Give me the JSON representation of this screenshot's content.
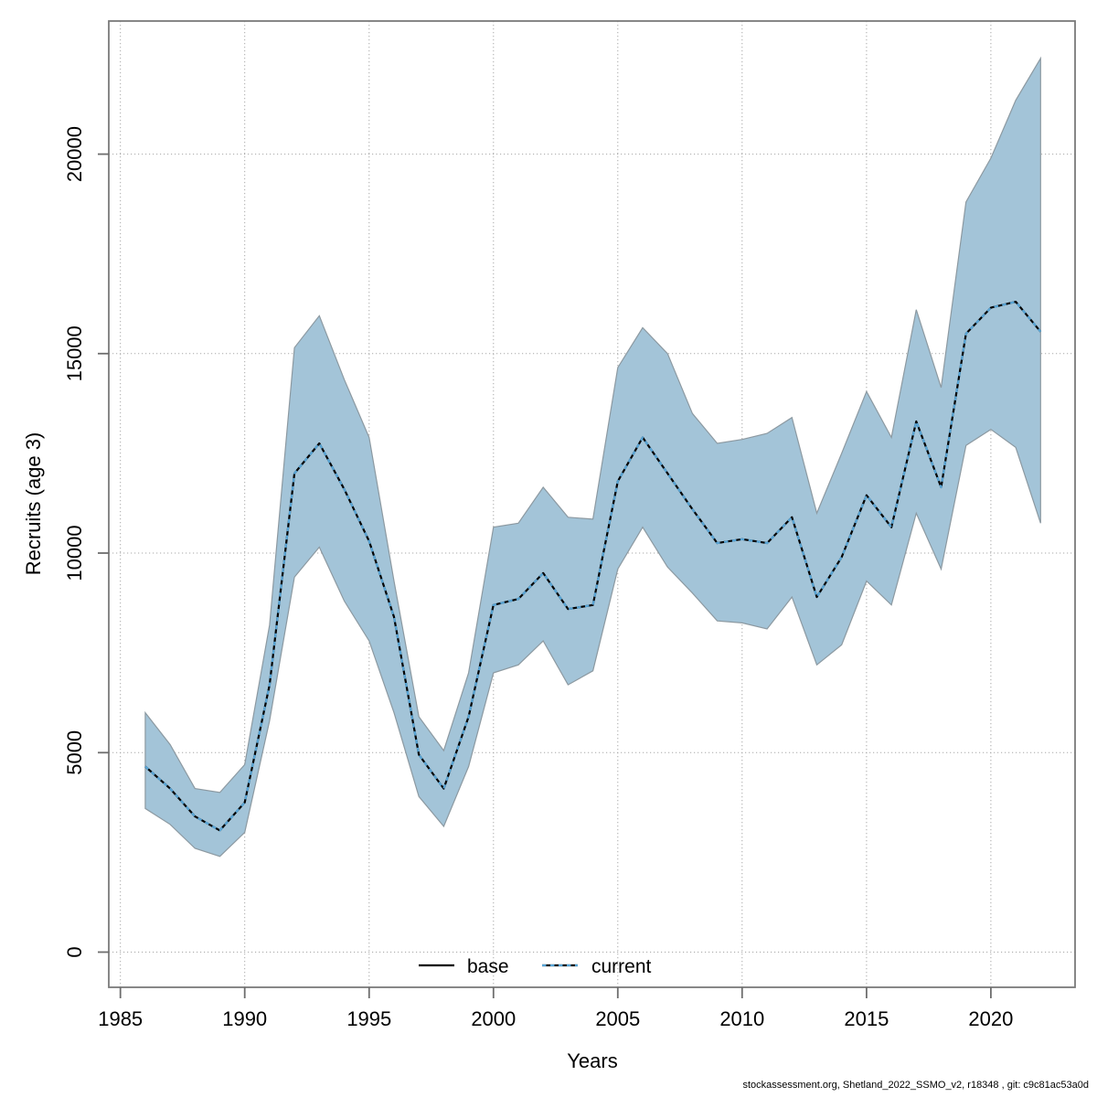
{
  "footer": "stockassessment.org, Shetland_2022_SSMO_v2, r18348 , git: c9c81ac53a0d",
  "chart_data": {
    "type": "line",
    "title": "",
    "xlabel": "Years",
    "ylabel": "Recruits (age 3)",
    "x_ticks": [
      1985,
      1990,
      1995,
      2000,
      2005,
      2010,
      2015,
      2020
    ],
    "y_ticks": [
      0,
      5000,
      10000,
      15000,
      20000
    ],
    "xlim": [
      1984.5,
      2023.4
    ],
    "ylim": [
      0,
      23350
    ],
    "grid": true,
    "legend_position": "bottom-center-inside",
    "legend": [
      "base",
      "current"
    ],
    "band_fill_color": "#a3c4d8",
    "current_line_color": "#58a5d6",
    "base_line_color": "#000000",
    "note": "base line coincides with the current median line (hidden beneath the dotted overlay); shaded region is the confidence band of the current run",
    "x": [
      1986,
      1987,
      1988,
      1989,
      1990,
      1991,
      1992,
      1993,
      1994,
      1995,
      1996,
      1997,
      1998,
      1999,
      2000,
      2001,
      2002,
      2003,
      2004,
      2005,
      2006,
      2007,
      2008,
      2009,
      2010,
      2011,
      2012,
      2013,
      2014,
      2015,
      2016,
      2017,
      2018,
      2019,
      2020,
      2021,
      2022
    ],
    "series": [
      {
        "name": "current",
        "role": "median",
        "linestyle": "dotted",
        "values": [
          4650,
          4100,
          3400,
          3050,
          3750,
          6700,
          12000,
          12750,
          11600,
          10300,
          8400,
          4950,
          4100,
          5900,
          8700,
          8850,
          9500,
          8600,
          8700,
          11800,
          12900,
          12000,
          11100,
          10250,
          10350,
          10250,
          10900,
          8900,
          9900,
          11450,
          10650,
          13300,
          11650,
          15500,
          16150,
          16300,
          15550
        ]
      },
      {
        "name": "ci_upper",
        "role": "band-upper",
        "values": [
          6000,
          5200,
          4100,
          4000,
          4700,
          8200,
          15150,
          15950,
          14350,
          12900,
          9300,
          5900,
          5050,
          7000,
          10650,
          10750,
          11650,
          10900,
          10850,
          14650,
          15650,
          15000,
          13500,
          12750,
          12850,
          13000,
          13400,
          11000,
          12500,
          14050,
          12900,
          16100,
          14150,
          18800,
          19900,
          21350,
          22400
        ]
      },
      {
        "name": "ci_lower",
        "role": "band-lower",
        "values": [
          3600,
          3200,
          2600,
          2400,
          3000,
          5800,
          9400,
          10150,
          8800,
          7800,
          6000,
          3900,
          3150,
          4650,
          7000,
          7200,
          7800,
          6700,
          7050,
          9600,
          10650,
          9650,
          9000,
          8300,
          8250,
          8100,
          8900,
          7200,
          7700,
          9300,
          8700,
          11000,
          9600,
          12700,
          13100,
          12650,
          10750
        ]
      }
    ]
  }
}
